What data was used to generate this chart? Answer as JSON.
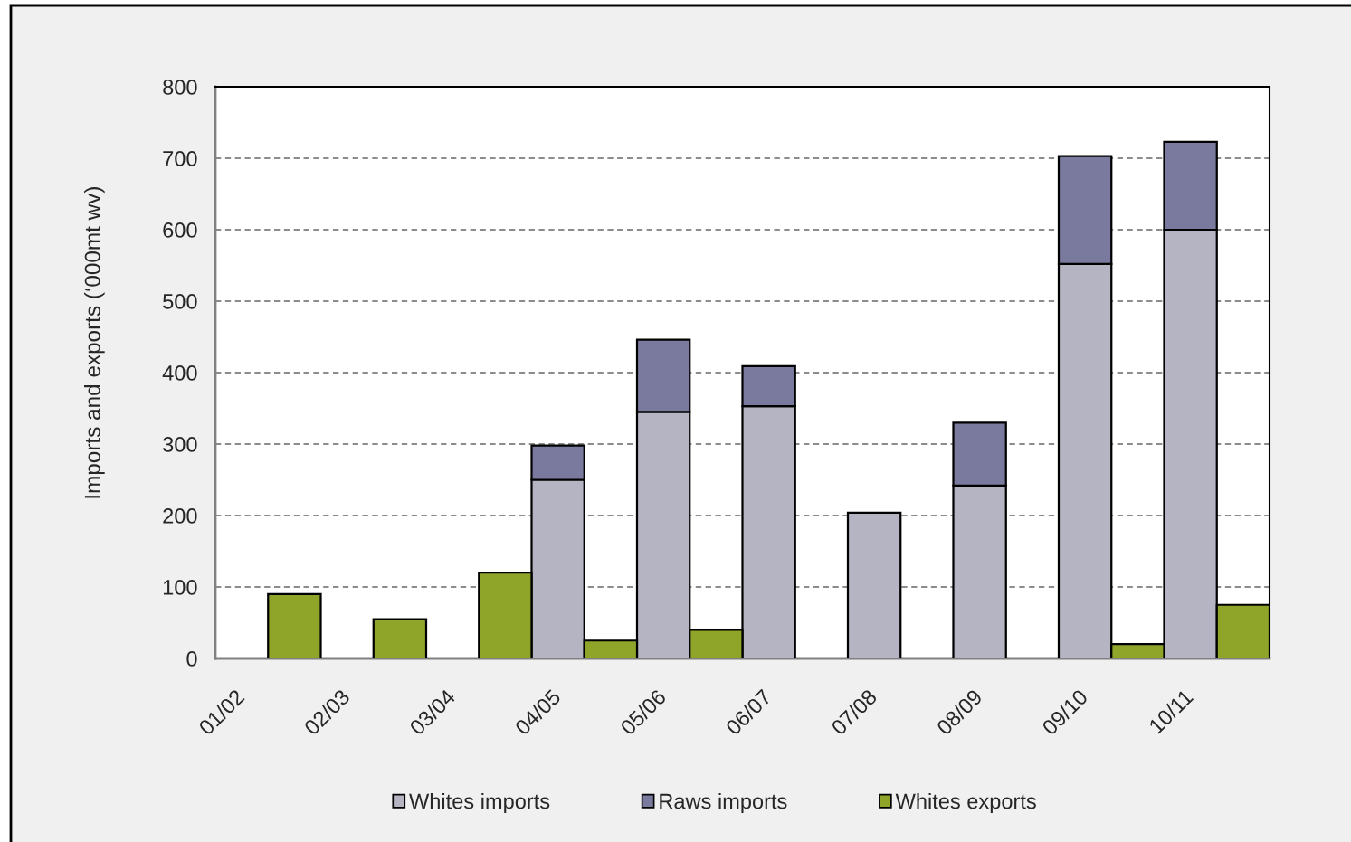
{
  "chart_data": {
    "type": "bar",
    "ylabel": "Imports and exports (‘000mt wv)",
    "categories": [
      "01/02",
      null,
      "02/03",
      null,
      "03/04",
      null,
      "04/05",
      null,
      "05/06",
      null,
      "06/07",
      null,
      "07/08",
      null,
      "08/09",
      null,
      "09/10",
      null,
      "10/11",
      null
    ],
    "stacked": true,
    "series": [
      {
        "name": "Whites imports",
        "color": "#b4b4c2",
        "values": [
          null,
          null,
          null,
          null,
          null,
          null,
          250,
          null,
          345,
          null,
          353,
          null,
          204,
          null,
          242,
          null,
          552,
          null,
          600,
          null
        ]
      },
      {
        "name": "Raws imports",
        "color": "#7a7a9e",
        "values": [
          null,
          null,
          null,
          null,
          null,
          null,
          48,
          null,
          101,
          null,
          56,
          null,
          null,
          null,
          88,
          null,
          151,
          null,
          123,
          null
        ]
      },
      {
        "name": "Whites exports",
        "color": "#8fa52a",
        "values": [
          null,
          90,
          null,
          55,
          null,
          120,
          null,
          25,
          null,
          40,
          null,
          null,
          null,
          null,
          null,
          null,
          null,
          20,
          null,
          75
        ]
      }
    ],
    "ylim": [
      0,
      800
    ],
    "yticks": [
      0,
      100,
      200,
      300,
      400,
      500,
      600,
      700,
      800
    ],
    "grid": "y",
    "legend": "bottom"
  }
}
